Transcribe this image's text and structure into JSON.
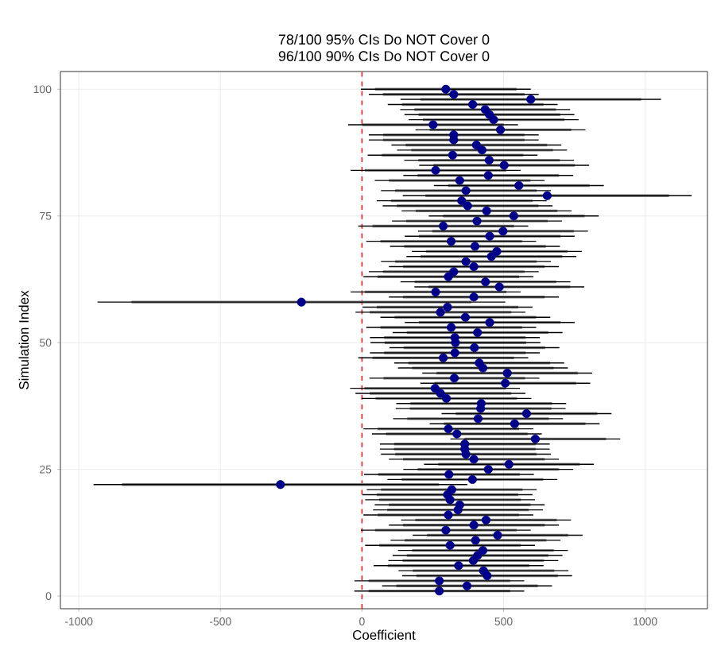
{
  "chart_data": {
    "type": "scatter",
    "title": "78/100 95% CIs Do NOT Cover 0",
    "subtitle": "96/100 90% CIs Do NOT Cover 0",
    "xlabel": "Coefficient",
    "ylabel": "Simulation Index",
    "xlim": [
      -1065,
      1220
    ],
    "ylim": [
      -2.5,
      103.5
    ],
    "xticks": [
      -1000,
      -500,
      0,
      500,
      1000
    ],
    "yticks": [
      0,
      25,
      50,
      75,
      100
    ],
    "grid": true,
    "ref_lines": [
      {
        "axis": "x",
        "value": 0,
        "color": "#ff0000",
        "line_style": "dashed"
      }
    ],
    "series": [
      {
        "type": "line",
        "color": "#808080",
        "marker": "none",
        "x": [
          23,
          523
        ],
        "values": [
          1,
          1
        ]
      },
      {
        "type": "line",
        "color": "#808080",
        "marker": "none",
        "x": [
          121,
          621
        ],
        "values": [
          2,
          2
        ]
      },
      {
        "type": "line",
        "color": "#808080",
        "marker": "none",
        "x": [
          23,
          523
        ],
        "values": [
          3,
          3
        ]
      },
      {
        "type": "line",
        "color": "#808080",
        "marker": "none",
        "x": [
          192,
          692
        ],
        "values": [
          4,
          4
        ]
      },
      {
        "type": "line",
        "color": "#808080",
        "marker": "none",
        "x": [
          179,
          679
        ],
        "values": [
          5,
          5
        ]
      },
      {
        "type": "line",
        "color": "#808080",
        "marker": "none",
        "x": [
          91,
          591
        ],
        "values": [
          6,
          6
        ]
      },
      {
        "type": "line",
        "color": "#808080",
        "marker": "none",
        "x": [
          143,
          643
        ],
        "values": [
          7,
          7
        ]
      },
      {
        "type": "line",
        "color": "#808080",
        "marker": "none",
        "x": [
          158,
          658
        ],
        "values": [
          8,
          8
        ]
      },
      {
        "type": "line",
        "color": "#808080",
        "marker": "none",
        "x": [
          177,
          677
        ],
        "values": [
          9,
          9
        ]
      },
      {
        "type": "line",
        "color": "#808080",
        "marker": "none",
        "x": [
          61,
          561
        ],
        "values": [
          10,
          10
        ]
      },
      {
        "type": "line",
        "color": "#808080",
        "marker": "none",
        "x": [
          151,
          651
        ],
        "values": [
          11,
          11
        ]
      },
      {
        "type": "line",
        "color": "#808080",
        "marker": "none",
        "x": [
          229,
          729
        ],
        "values": [
          12,
          12
        ]
      },
      {
        "type": "line",
        "color": "#808080",
        "marker": "none",
        "x": [
          46,
          546
        ],
        "values": [
          13,
          13
        ]
      },
      {
        "type": "line",
        "color": "#808080",
        "marker": "none",
        "x": [
          145,
          645
        ],
        "values": [
          14,
          14
        ]
      },
      {
        "type": "line",
        "color": "#808080",
        "marker": "none",
        "x": [
          188,
          688
        ],
        "values": [
          15,
          15
        ]
      },
      {
        "type": "line",
        "color": "#808080",
        "marker": "none",
        "x": [
          55,
          555
        ],
        "values": [
          16,
          16
        ]
      },
      {
        "type": "line",
        "color": "#808080",
        "marker": "none",
        "x": [
          89,
          589
        ],
        "values": [
          17,
          17
        ]
      },
      {
        "type": "line",
        "color": "#808080",
        "marker": "none",
        "x": [
          95,
          595
        ],
        "values": [
          18,
          18
        ]
      },
      {
        "type": "line",
        "color": "#808080",
        "marker": "none",
        "x": [
          61,
          561
        ],
        "values": [
          19,
          19
        ]
      },
      {
        "type": "line",
        "color": "#808080",
        "marker": "none",
        "x": [
          52,
          552
        ],
        "values": [
          20,
          20
        ]
      },
      {
        "type": "line",
        "color": "#808080",
        "marker": "none",
        "x": [
          67,
          567
        ],
        "values": [
          21,
          21
        ]
      },
      {
        "type": "line",
        "color": "#808080",
        "marker": "none",
        "x": [
          -848,
          272
        ],
        "values": [
          22,
          22
        ]
      },
      {
        "type": "line",
        "color": "#808080",
        "marker": "none",
        "x": [
          140,
          640
        ],
        "values": [
          23,
          23
        ]
      },
      {
        "type": "line",
        "color": "#808080",
        "marker": "none",
        "x": [
          57,
          557
        ],
        "values": [
          24,
          24
        ]
      },
      {
        "type": "line",
        "color": "#808080",
        "marker": "none",
        "x": [
          196,
          696
        ],
        "values": [
          25,
          25
        ]
      },
      {
        "type": "line",
        "color": "#808080",
        "marker": "none",
        "x": [
          269,
          769
        ],
        "values": [
          26,
          26
        ]
      },
      {
        "type": "line",
        "color": "#808080",
        "marker": "none",
        "x": [
          145,
          645
        ],
        "values": [
          27,
          27
        ]
      },
      {
        "type": "line",
        "color": "#808080",
        "marker": "none",
        "x": [
          117,
          617
        ],
        "values": [
          28,
          28
        ]
      },
      {
        "type": "line",
        "color": "#808080",
        "marker": "none",
        "x": [
          113,
          613
        ],
        "values": [
          29,
          29
        ]
      },
      {
        "type": "line",
        "color": "#808080",
        "marker": "none",
        "x": [
          113,
          613
        ],
        "values": [
          30,
          30
        ]
      },
      {
        "type": "line",
        "color": "#808080",
        "marker": "none",
        "x": [
          362,
          862
        ],
        "values": [
          31,
          31
        ]
      },
      {
        "type": "line",
        "color": "#808080",
        "marker": "none",
        "x": [
          85,
          585
        ],
        "values": [
          32,
          32
        ]
      },
      {
        "type": "line",
        "color": "#808080",
        "marker": "none",
        "x": [
          55,
          555
        ],
        "values": [
          33,
          33
        ]
      },
      {
        "type": "line",
        "color": "#808080",
        "marker": "none",
        "x": [
          289,
          789
        ],
        "values": [
          34,
          34
        ]
      },
      {
        "type": "line",
        "color": "#808080",
        "marker": "none",
        "x": [
          160,
          660
        ],
        "values": [
          35,
          35
        ]
      },
      {
        "type": "line",
        "color": "#808080",
        "marker": "none",
        "x": [
          331,
          831
        ],
        "values": [
          36,
          36
        ]
      },
      {
        "type": "line",
        "color": "#808080",
        "marker": "none",
        "x": [
          169,
          669
        ],
        "values": [
          37,
          37
        ]
      },
      {
        "type": "line",
        "color": "#808080",
        "marker": "none",
        "x": [
          171,
          671
        ],
        "values": [
          38,
          38
        ]
      },
      {
        "type": "line",
        "color": "#808080",
        "marker": "none",
        "x": [
          48,
          548
        ],
        "values": [
          39,
          39
        ]
      },
      {
        "type": "line",
        "color": "#808080",
        "marker": "none",
        "x": [
          27,
          527
        ],
        "values": [
          40,
          40
        ]
      },
      {
        "type": "line",
        "color": "#808080",
        "marker": "none",
        "x": [
          8,
          508
        ],
        "values": [
          41,
          41
        ]
      },
      {
        "type": "line",
        "color": "#808080",
        "marker": "none",
        "x": [
          256,
          756
        ],
        "values": [
          42,
          42
        ]
      },
      {
        "type": "line",
        "color": "#808080",
        "marker": "none",
        "x": [
          76,
          576
        ],
        "values": [
          43,
          43
        ]
      },
      {
        "type": "line",
        "color": "#808080",
        "marker": "none",
        "x": [
          263,
          763
        ],
        "values": [
          44,
          44
        ]
      },
      {
        "type": "line",
        "color": "#808080",
        "marker": "none",
        "x": [
          177,
          677
        ],
        "values": [
          45,
          45
        ]
      },
      {
        "type": "line",
        "color": "#808080",
        "marker": "none",
        "x": [
          164,
          664
        ],
        "values": [
          46,
          46
        ]
      },
      {
        "type": "line",
        "color": "#808080",
        "marker": "none",
        "x": [
          37,
          537
        ],
        "values": [
          47,
          47
        ]
      },
      {
        "type": "line",
        "color": "#808080",
        "marker": "none",
        "x": [
          78,
          578
        ],
        "values": [
          48,
          48
        ]
      },
      {
        "type": "line",
        "color": "#808080",
        "marker": "none",
        "x": [
          147,
          647
        ],
        "values": [
          49,
          49
        ]
      },
      {
        "type": "line",
        "color": "#808080",
        "marker": "none",
        "x": [
          80,
          580
        ],
        "values": [
          50,
          50
        ]
      },
      {
        "type": "line",
        "color": "#808080",
        "marker": "none",
        "x": [
          78,
          578
        ],
        "values": [
          51,
          51
        ]
      },
      {
        "type": "line",
        "color": "#808080",
        "marker": "none",
        "x": [
          158,
          658
        ],
        "values": [
          52,
          52
        ]
      },
      {
        "type": "line",
        "color": "#808080",
        "marker": "none",
        "x": [
          65,
          565
        ],
        "values": [
          53,
          53
        ]
      },
      {
        "type": "line",
        "color": "#808080",
        "marker": "none",
        "x": [
          201,
          701
        ],
        "values": [
          54,
          54
        ]
      },
      {
        "type": "line",
        "color": "#808080",
        "marker": "none",
        "x": [
          115,
          615
        ],
        "values": [
          55,
          55
        ]
      },
      {
        "type": "line",
        "color": "#808080",
        "marker": "none",
        "x": [
          27,
          527
        ],
        "values": [
          56,
          56
        ]
      },
      {
        "type": "line",
        "color": "#808080",
        "marker": "none",
        "x": [
          52,
          552
        ],
        "values": [
          57,
          57
        ]
      },
      {
        "type": "line",
        "color": "#808080",
        "marker": "none",
        "x": [
          -814,
          386
        ],
        "values": [
          58,
          58
        ]
      },
      {
        "type": "line",
        "color": "#808080",
        "marker": "none",
        "x": [
          145,
          645
        ],
        "values": [
          59,
          59
        ]
      },
      {
        "type": "line",
        "color": "#808080",
        "marker": "none",
        "x": [
          10,
          510
        ],
        "values": [
          60,
          60
        ]
      },
      {
        "type": "line",
        "color": "#808080",
        "marker": "none",
        "x": [
          235,
          735
        ],
        "values": [
          61,
          61
        ]
      },
      {
        "type": "line",
        "color": "#808080",
        "marker": "none",
        "x": [
          186,
          686
        ],
        "values": [
          62,
          62
        ]
      },
      {
        "type": "line",
        "color": "#808080",
        "marker": "none",
        "x": [
          55,
          555
        ],
        "values": [
          63,
          63
        ]
      },
      {
        "type": "line",
        "color": "#808080",
        "marker": "none",
        "x": [
          74,
          574
        ],
        "values": [
          64,
          64
        ]
      },
      {
        "type": "line",
        "color": "#808080",
        "marker": "none",
        "x": [
          145,
          645
        ],
        "values": [
          65,
          65
        ]
      },
      {
        "type": "line",
        "color": "#808080",
        "marker": "none",
        "x": [
          117,
          617
        ],
        "values": [
          66,
          66
        ]
      },
      {
        "type": "line",
        "color": "#808080",
        "marker": "none",
        "x": [
          207,
          707
        ],
        "values": [
          67,
          67
        ]
      },
      {
        "type": "line",
        "color": "#808080",
        "marker": "none",
        "x": [
          226,
          726
        ],
        "values": [
          68,
          68
        ]
      },
      {
        "type": "line",
        "color": "#808080",
        "marker": "none",
        "x": [
          149,
          649
        ],
        "values": [
          69,
          69
        ]
      },
      {
        "type": "line",
        "color": "#808080",
        "marker": "none",
        "x": [
          65,
          565
        ],
        "values": [
          70,
          70
        ]
      },
      {
        "type": "line",
        "color": "#808080",
        "marker": "none",
        "x": [
          201,
          701
        ],
        "values": [
          71,
          71
        ]
      },
      {
        "type": "line",
        "color": "#808080",
        "marker": "none",
        "x": [
          248,
          748
        ],
        "values": [
          72,
          72
        ]
      },
      {
        "type": "line",
        "color": "#808080",
        "marker": "none",
        "x": [
          37,
          537
        ],
        "values": [
          73,
          73
        ]
      },
      {
        "type": "line",
        "color": "#808080",
        "marker": "none",
        "x": [
          156,
          656
        ],
        "values": [
          74,
          74
        ]
      },
      {
        "type": "line",
        "color": "#808080",
        "marker": "none",
        "x": [
          286,
          786
        ],
        "values": [
          75,
          75
        ]
      },
      {
        "type": "line",
        "color": "#808080",
        "marker": "none",
        "x": [
          190,
          690
        ],
        "values": [
          76,
          76
        ]
      },
      {
        "type": "line",
        "color": "#808080",
        "marker": "none",
        "x": [
          123,
          623
        ],
        "values": [
          77,
          77
        ]
      },
      {
        "type": "line",
        "color": "#808080",
        "marker": "none",
        "x": [
          102,
          602
        ],
        "values": [
          78,
          78
        ]
      },
      {
        "type": "line",
        "color": "#808080",
        "marker": "none",
        "x": [
          224,
          1084
        ],
        "values": [
          79,
          79
        ]
      },
      {
        "type": "line",
        "color": "#808080",
        "marker": "none",
        "x": [
          117,
          617
        ],
        "values": [
          80,
          80
        ]
      },
      {
        "type": "line",
        "color": "#808080",
        "marker": "none",
        "x": [
          304,
          804
        ],
        "values": [
          81,
          81
        ]
      },
      {
        "type": "line",
        "color": "#808080",
        "marker": "none",
        "x": [
          95,
          595
        ],
        "values": [
          82,
          82
        ]
      },
      {
        "type": "line",
        "color": "#808080",
        "marker": "none",
        "x": [
          196,
          696
        ],
        "values": [
          83,
          83
        ]
      },
      {
        "type": "line",
        "color": "#808080",
        "marker": "none",
        "x": [
          10,
          510
        ],
        "values": [
          84,
          84
        ]
      },
      {
        "type": "line",
        "color": "#808080",
        "marker": "none",
        "x": [
          252,
          752
        ],
        "values": [
          85,
          85
        ]
      },
      {
        "type": "line",
        "color": "#808080",
        "marker": "none",
        "x": [
          199,
          699
        ],
        "values": [
          86,
          86
        ]
      },
      {
        "type": "line",
        "color": "#808080",
        "marker": "none",
        "x": [
          70,
          570
        ],
        "values": [
          87,
          87
        ]
      },
      {
        "type": "line",
        "color": "#808080",
        "marker": "none",
        "x": [
          174,
          674
        ],
        "values": [
          88,
          88
        ]
      },
      {
        "type": "line",
        "color": "#808080",
        "marker": "none",
        "x": [
          154,
          654
        ],
        "values": [
          89,
          89
        ]
      },
      {
        "type": "line",
        "color": "#808080",
        "marker": "none",
        "x": [
          74,
          574
        ],
        "values": [
          90,
          90
        ]
      },
      {
        "type": "line",
        "color": "#808080",
        "marker": "none",
        "x": [
          74,
          574
        ],
        "values": [
          91,
          91
        ]
      },
      {
        "type": "line",
        "color": "#808080",
        "marker": "none",
        "x": [
          239,
          739
        ],
        "values": [
          92,
          92
        ]
      },
      {
        "type": "line",
        "color": "#808080",
        "marker": "none",
        "x": [
          1,
          501
        ],
        "values": [
          93,
          93
        ]
      },
      {
        "type": "line",
        "color": "#808080",
        "marker": "none",
        "x": [
          215,
          715
        ],
        "values": [
          94,
          94
        ]
      },
      {
        "type": "line",
        "color": "#808080",
        "marker": "none",
        "x": [
          200,
          700
        ],
        "values": [
          95,
          95
        ]
      },
      {
        "type": "line",
        "color": "#808080",
        "marker": "none",
        "x": [
          185,
          685
        ],
        "values": [
          96,
          96
        ]
      },
      {
        "type": "line",
        "color": "#808080",
        "marker": "none",
        "x": [
          141,
          641
        ],
        "values": [
          97,
          97
        ]
      },
      {
        "type": "line",
        "color": "#808080",
        "marker": "none",
        "x": [
          206,
          986
        ],
        "values": [
          98,
          98
        ]
      },
      {
        "type": "line",
        "color": "#808080",
        "marker": "none",
        "x": [
          74,
          574
        ],
        "values": [
          99,
          99
        ]
      },
      {
        "type": "line",
        "color": "#808080",
        "marker": "none",
        "x": [
          46,
          546
        ],
        "values": [
          100,
          100
        ]
      },
      {
        "color": "#00008b",
        "marker": "circle",
        "x": [
          273,
          371,
          273,
          442,
          429,
          341,
          393,
          408,
          427,
          311,
          401,
          479,
          296,
          395,
          438,
          305,
          339,
          345,
          311,
          302,
          317,
          -288,
          390,
          307,
          446,
          519,
          395,
          367,
          363,
          363,
          612,
          335,
          305,
          539,
          410,
          581,
          419,
          421,
          298,
          277,
          258,
          506,
          326,
          513,
          427,
          414,
          287,
          328,
          397,
          330,
          328,
          408,
          315,
          451,
          365,
          277,
          302,
          -214,
          395,
          260,
          485,
          436,
          305,
          324,
          395,
          367,
          457,
          476,
          399,
          315,
          451,
          498,
          287,
          406,
          536,
          440,
          373,
          352,
          654,
          367,
          554,
          345,
          446,
          260,
          502,
          449,
          320,
          424,
          404,
          324,
          324,
          489,
          251,
          465,
          450,
          435,
          391,
          596,
          324,
          296
        ],
        "values": [
          1,
          2,
          3,
          4,
          5,
          6,
          7,
          8,
          9,
          10,
          11,
          12,
          13,
          14,
          15,
          16,
          17,
          18,
          19,
          20,
          21,
          22,
          23,
          24,
          25,
          26,
          27,
          28,
          29,
          30,
          31,
          32,
          33,
          34,
          35,
          36,
          37,
          38,
          39,
          40,
          41,
          42,
          43,
          44,
          45,
          46,
          47,
          48,
          49,
          50,
          51,
          52,
          53,
          54,
          55,
          56,
          57,
          58,
          59,
          60,
          61,
          62,
          63,
          64,
          65,
          66,
          67,
          68,
          69,
          70,
          71,
          72,
          73,
          74,
          75,
          76,
          77,
          78,
          79,
          80,
          81,
          82,
          83,
          84,
          85,
          86,
          87,
          88,
          89,
          90,
          91,
          92,
          93,
          94,
          95,
          96,
          97,
          98,
          99,
          100
        ],
        "xerrors": [
          300,
          300,
          300,
          300,
          300,
          300,
          300,
          300,
          300,
          300,
          300,
          300,
          300,
          300,
          300,
          300,
          300,
          300,
          300,
          300,
          300,
          660,
          300,
          300,
          300,
          300,
          300,
          300,
          300,
          300,
          300,
          300,
          300,
          300,
          300,
          300,
          300,
          300,
          300,
          300,
          300,
          300,
          300,
          300,
          300,
          300,
          300,
          300,
          300,
          300,
          300,
          300,
          300,
          300,
          300,
          300,
          300,
          720,
          300,
          300,
          300,
          300,
          300,
          300,
          300,
          300,
          300,
          300,
          300,
          300,
          300,
          300,
          300,
          300,
          300,
          300,
          300,
          300,
          510,
          300,
          300,
          300,
          300,
          300,
          300,
          300,
          300,
          300,
          300,
          300,
          300,
          300,
          300,
          300,
          300,
          300,
          300,
          460,
          300,
          300
        ]
      }
    ]
  }
}
